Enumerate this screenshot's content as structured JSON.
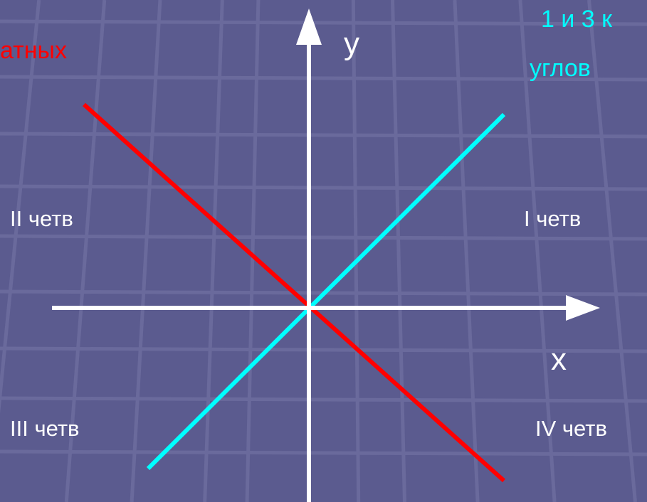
{
  "texts": {
    "red_note": "атных",
    "cyan_note_line1": "1 и 3 к",
    "cyan_note_line2": "углов",
    "y_axis": "y",
    "x_axis": "x",
    "quadrant_1": "I четв",
    "quadrant_2": "II четв",
    "quadrant_3": "III четв",
    "quadrant_4": "IV четв"
  },
  "colors": {
    "background": "#5b5b8f",
    "grid": "#6a6a9c",
    "axes": "#ffffff",
    "bisector_1_3": "#00ffff",
    "bisector_2_4": "#ff0000"
  }
}
